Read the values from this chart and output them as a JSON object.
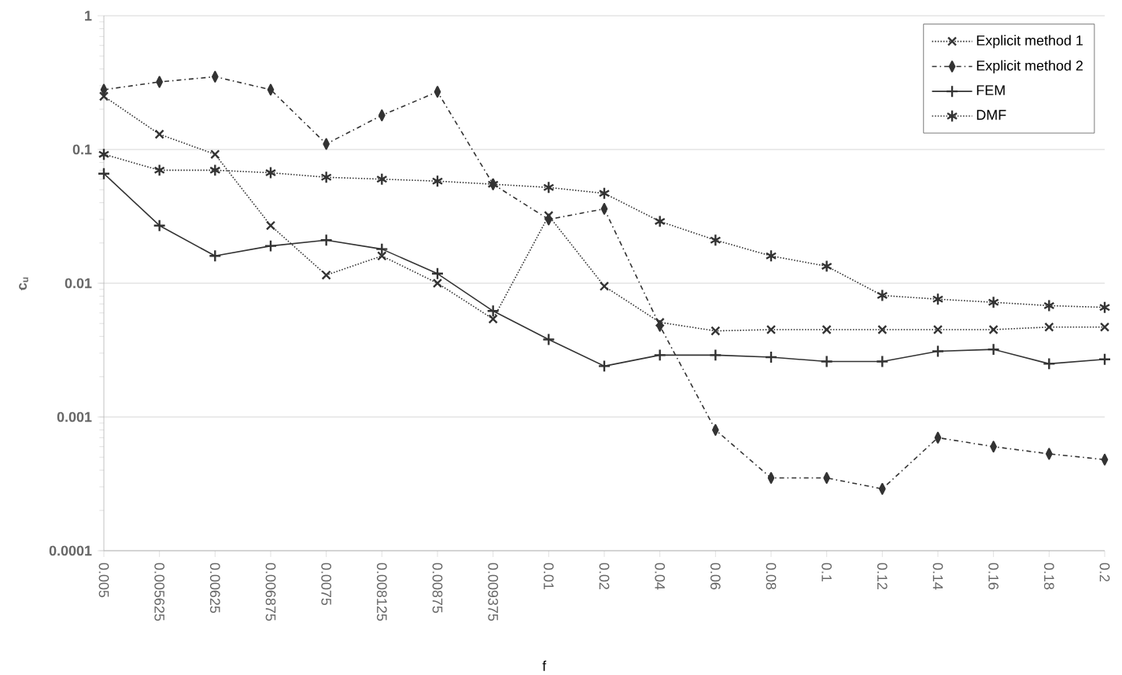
{
  "chart_data": {
    "type": "line",
    "xlabel": "f",
    "ylabel": "c$_{u}$",
    "categories": [
      "0.005",
      "0.005625",
      "0.00625",
      "0.006875",
      "0.0075",
      "0.008125",
      "0.00875",
      "0.009375",
      "0.01",
      "0.02",
      "0.04",
      "0.06",
      "0.08",
      "0.1",
      "0.12",
      "0.14",
      "0.16",
      "0.18",
      "0.2"
    ],
    "series": [
      {
        "name": "Explicit method 1",
        "color": "#333333",
        "marker": "cross",
        "line_style": "dotted",
        "values": [
          0.25,
          0.13,
          0.092,
          0.027,
          0.0115,
          0.016,
          0.01,
          0.0054,
          0.032,
          0.0095,
          0.0051,
          0.0044,
          0.0045,
          0.0045,
          0.0045,
          0.0045,
          0.0045,
          0.0047,
          0.0047
        ]
      },
      {
        "name": "Explicit method 2",
        "color": "#333333",
        "marker": "diamond",
        "line_style": "dashed",
        "values": [
          0.28,
          0.32,
          0.35,
          0.28,
          0.11,
          0.18,
          0.27,
          0.055,
          0.03,
          0.036,
          0.0048,
          0.0008,
          0.00035,
          0.00035,
          0.00029,
          0.0007,
          0.0006,
          0.00053,
          0.00048
        ]
      },
      {
        "name": "FEM",
        "color": "#333333",
        "marker": "cross",
        "line_style": "solid",
        "values": [
          0.066,
          0.027,
          0.016,
          0.019,
          0.021,
          0.018,
          0.0118,
          0.0062,
          0.0038,
          0.0024,
          0.0029,
          0.0029,
          0.0028,
          0.0026,
          0.0026,
          0.0031,
          0.0032,
          0.0025,
          0.0027
        ]
      },
      {
        "name": "DMF",
        "color": "#333333",
        "marker": "cross",
        "line_style": "dotted",
        "values": [
          0.092,
          0.07,
          0.07,
          0.067,
          0.062,
          0.06,
          0.058,
          0.055,
          0.052,
          0.047,
          0.029,
          0.021,
          0.016,
          0.0134,
          0.0081,
          0.0076,
          0.0072,
          0.0068,
          0.0066
        ]
      }
    ],
    "log": "y",
    "ylim": [
      0.0001,
      1
    ],
    "yticks": [
      0.0001,
      0.001,
      0.01,
      0.1,
      1
    ],
    "grid": "y",
    "legend": "top right"
  }
}
